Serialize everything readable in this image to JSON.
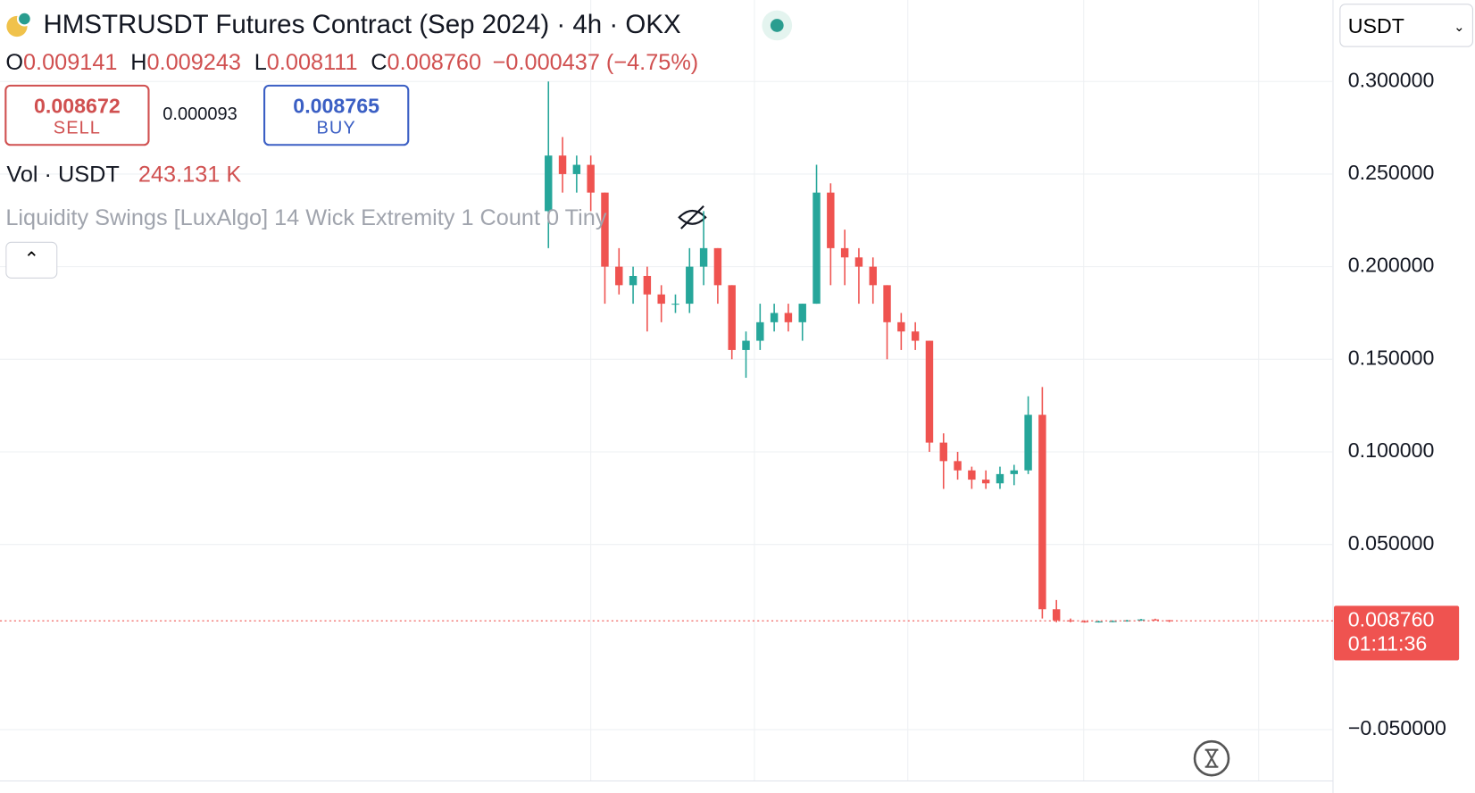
{
  "chart_data": {
    "type": "candlestick",
    "title": "HMSTRUSDT Futures Contract (Sep 2024) · 4h · OKX",
    "ohlc_labels": [
      "O",
      "H",
      "L",
      "C"
    ],
    "ohlc_values": [
      "0.009141",
      "0.009243",
      "0.008111",
      "0.008760"
    ],
    "change": "−0.000437 (−4.75%)",
    "sell": {
      "price": "0.008672",
      "label": "SELL"
    },
    "spread": "0.000093",
    "buy": {
      "price": "0.008765",
      "label": "BUY"
    },
    "volume_label": "Vol · USDT",
    "volume_value": "243.131 K",
    "indicator": "Liquidity Swings [LuxAlgo] 14 Wick Extremity 1 Count 0 Tiny",
    "currency": "USDT",
    "last_price": {
      "value": 0.00876,
      "label": "0.008760"
    },
    "countdown": "01:11:36",
    "up_color": "#26a69a",
    "down_color": "#ef5350",
    "ylim": [
      -0.0777,
      0.344
    ],
    "yticks": [
      {
        "value": 0.3,
        "label": "0.300000"
      },
      {
        "value": 0.25,
        "label": "0.250000"
      },
      {
        "value": 0.2,
        "label": "0.200000"
      },
      {
        "value": 0.15,
        "label": "0.150000"
      },
      {
        "value": 0.1,
        "label": "0.100000"
      },
      {
        "value": 0.05,
        "label": "0.050000"
      },
      {
        "value": -0.05,
        "label": "−0.050000"
      }
    ],
    "grid": true,
    "open": [
      0.23,
      0.26,
      0.25,
      0.255,
      0.24,
      0.2,
      0.19,
      0.195,
      0.185,
      0.18,
      0.18,
      0.2,
      0.21,
      0.19,
      0.155,
      0.16,
      0.17,
      0.175,
      0.17,
      0.18,
      0.24,
      0.21,
      0.205,
      0.2,
      0.19,
      0.17,
      0.165,
      0.16,
      0.105,
      0.095,
      0.09,
      0.085,
      0.083,
      0.088,
      0.09,
      0.12,
      0.015,
      0.009,
      0.0085,
      0.0082,
      0.0084,
      0.0086,
      0.009,
      0.0095,
      0.0091
    ],
    "high": [
      0.3,
      0.27,
      0.26,
      0.26,
      0.24,
      0.21,
      0.2,
      0.2,
      0.19,
      0.185,
      0.21,
      0.23,
      0.21,
      0.19,
      0.165,
      0.18,
      0.18,
      0.18,
      0.18,
      0.255,
      0.245,
      0.22,
      0.21,
      0.205,
      0.19,
      0.175,
      0.17,
      0.16,
      0.11,
      0.1,
      0.092,
      0.09,
      0.092,
      0.093,
      0.13,
      0.135,
      0.02,
      0.01,
      0.009,
      0.0088,
      0.009,
      0.0093,
      0.0098,
      0.0099,
      0.0092
    ],
    "low": [
      0.21,
      0.24,
      0.24,
      0.23,
      0.18,
      0.185,
      0.18,
      0.165,
      0.17,
      0.175,
      0.175,
      0.19,
      0.18,
      0.15,
      0.14,
      0.155,
      0.165,
      0.165,
      0.16,
      0.18,
      0.19,
      0.19,
      0.18,
      0.18,
      0.15,
      0.155,
      0.155,
      0.1,
      0.08,
      0.085,
      0.08,
      0.08,
      0.08,
      0.082,
      0.088,
      0.01,
      0.008,
      0.008,
      0.0078,
      0.0078,
      0.008,
      0.0083,
      0.0087,
      0.009,
      0.0081
    ],
    "close": [
      0.26,
      0.25,
      0.255,
      0.24,
      0.2,
      0.19,
      0.195,
      0.185,
      0.18,
      0.18,
      0.2,
      0.21,
      0.19,
      0.155,
      0.16,
      0.17,
      0.175,
      0.17,
      0.18,
      0.24,
      0.21,
      0.205,
      0.2,
      0.19,
      0.17,
      0.165,
      0.16,
      0.105,
      0.095,
      0.09,
      0.085,
      0.083,
      0.088,
      0.09,
      0.12,
      0.015,
      0.009,
      0.0085,
      0.0082,
      0.0084,
      0.0086,
      0.009,
      0.0095,
      0.0091,
      0.00876
    ]
  }
}
